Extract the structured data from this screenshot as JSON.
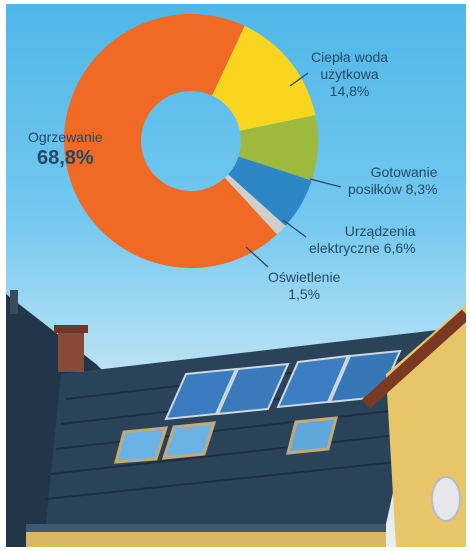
{
  "chart_data": {
    "type": "pie",
    "style": "donut",
    "slices": [
      {
        "label": "Ogrzewanie",
        "value_label": "68,8%",
        "value": 68.8,
        "color": "#f06a26"
      },
      {
        "label": "Ciepła woda użytkowa",
        "value_label": "14,8%",
        "value": 14.8,
        "color": "#f8d51e"
      },
      {
        "label": "Gotowanie posiłków",
        "value_label": "8,3%",
        "value": 8.3,
        "color": "#9db93e"
      },
      {
        "label": "Urządzenia elektryczne",
        "value_label": "6,6%",
        "value": 6.6,
        "color": "#2d86c6"
      },
      {
        "label": "Oświetlenie",
        "value_label": "1,5%",
        "value": 1.5,
        "color": "#cfd0cc"
      }
    ]
  },
  "labels": {
    "heating_line1": "Ogrzewanie",
    "heating_line2": "68,8%",
    "water_line1": "Ciepła woda",
    "water_line2": "użytkowa",
    "water_line3": "14,8%",
    "cooking_line1": "Gotowanie",
    "cooking_line2": "posiłków 8,3%",
    "devices_line1": "Urządzenia",
    "devices_line2": "elektryczne 6,6%",
    "lighting_line1": "Oświetlenie",
    "lighting_line2": "1,5%"
  }
}
